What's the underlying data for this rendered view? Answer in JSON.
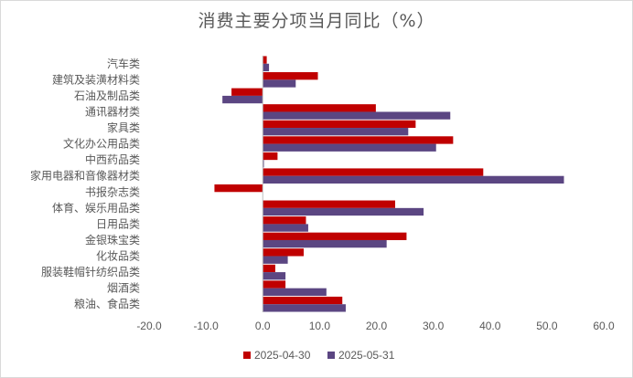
{
  "title": "消费主要分项当月同比（%）",
  "chart_data": {
    "type": "bar",
    "orientation": "horizontal",
    "title": "消费主要分项当月同比（%）",
    "categories": [
      "汽车类",
      "建筑及装潢材料类",
      "石油及制品类",
      "通讯器材类",
      "家具类",
      "文化办公用品类",
      "中西药品类",
      "家用电器和音像器材类",
      "书报杂志类",
      "体育、娱乐用品类",
      "日用品类",
      "金银珠宝类",
      "化妆品类",
      "服装鞋帽针纺织品类",
      "烟酒类",
      "粮油、食品类"
    ],
    "series": [
      {
        "name": "2025-04-30",
        "color": "#c00000",
        "values": [
          0.7,
          9.7,
          -5.5,
          19.9,
          26.9,
          33.5,
          2.6,
          38.8,
          -8.5,
          23.3,
          7.6,
          25.3,
          7.2,
          2.2,
          4.0,
          14.0
        ]
      },
      {
        "name": "2025-05-31",
        "color": "#5b4682",
        "values": [
          1.1,
          5.8,
          -7.1,
          33.0,
          25.6,
          30.5,
          0.2,
          53.0,
          0.0,
          28.3,
          8.0,
          21.8,
          4.4,
          4.0,
          11.2,
          14.6
        ]
      }
    ],
    "xlim": [
      -20,
      60
    ],
    "xticks": [
      "-20.0",
      "-10.0",
      "0.0",
      "10.0",
      "20.0",
      "30.0",
      "40.0",
      "50.0",
      "60.0"
    ],
    "grid": false,
    "legend": "bottom"
  }
}
